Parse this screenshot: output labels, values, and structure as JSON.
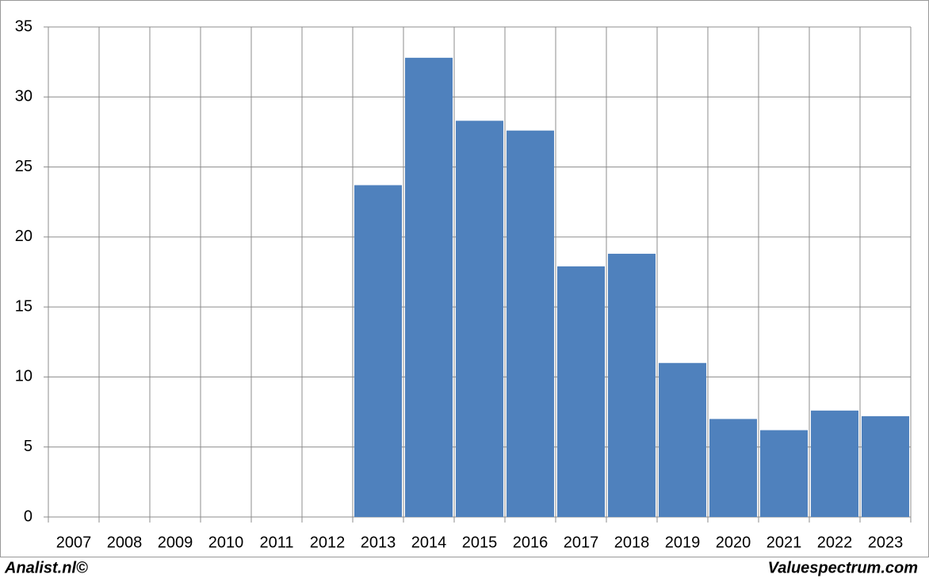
{
  "chart_data": {
    "type": "bar",
    "categories": [
      "2007",
      "2008",
      "2009",
      "2010",
      "2011",
      "2012",
      "2013",
      "2014",
      "2015",
      "2016",
      "2017",
      "2018",
      "2019",
      "2020",
      "2021",
      "2022",
      "2023"
    ],
    "values": [
      null,
      null,
      null,
      null,
      null,
      null,
      23.7,
      32.8,
      28.3,
      27.6,
      17.9,
      18.8,
      11.0,
      7.0,
      6.2,
      7.6,
      7.2
    ],
    "color": "#4f81bd",
    "ylim": [
      0,
      35
    ],
    "yticks": [
      0,
      5,
      10,
      15,
      20,
      25,
      30,
      35
    ],
    "grid": true
  },
  "footer": {
    "left": "Analist.nl©",
    "right": "Valuespectrum.com"
  }
}
